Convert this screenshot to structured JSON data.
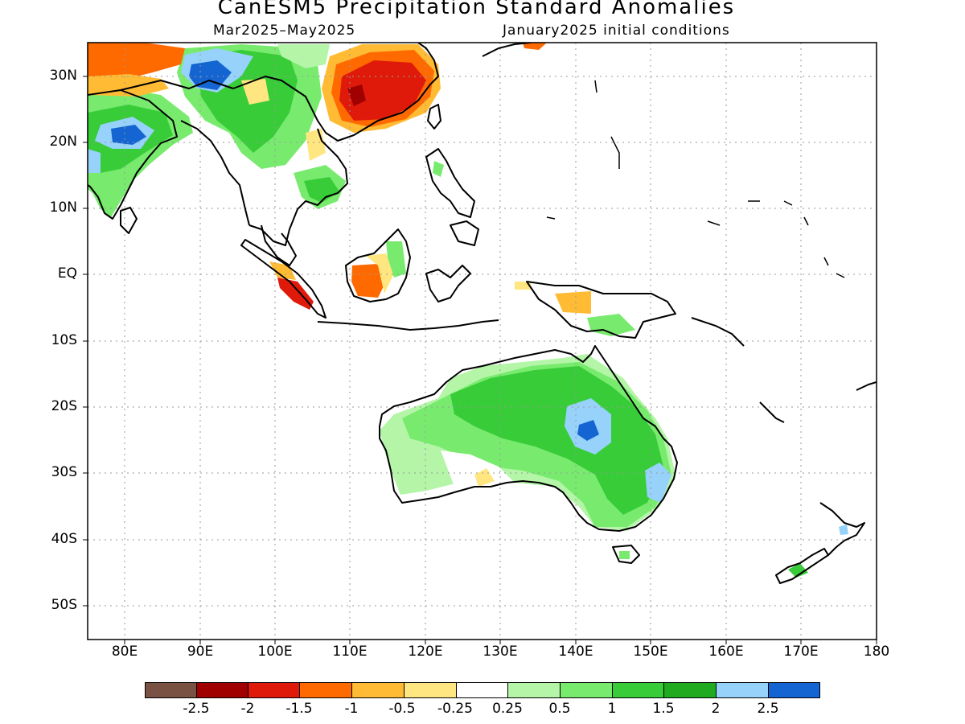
{
  "title": "CanESM5 Precipitation Standard Anomalies",
  "subtitle_left": "Mar2025–May2025",
  "subtitle_right": "January2025 initial conditions",
  "lat_labels": [
    "30N",
    "20N",
    "10N",
    "EQ",
    "10S",
    "20S",
    "30S",
    "40S",
    "50S"
  ],
  "lon_labels": [
    "80E",
    "90E",
    "100E",
    "110E",
    "120E",
    "130E",
    "140E",
    "150E",
    "160E",
    "170E",
    "180"
  ],
  "colorbar": {
    "colors": [
      "#7a5244",
      "#a00000",
      "#e01a0a",
      "#ff6a00",
      "#ffbb33",
      "#ffe680",
      "#ffffff",
      "#b4f5a8",
      "#78eb6e",
      "#38cc38",
      "#1faa1f",
      "#96d2fa",
      "#1464d2"
    ],
    "labels": [
      "-2.5",
      "-2",
      "-1.5",
      "-1",
      "-0.5",
      "-0.25",
      "0.25",
      "0.5",
      "1",
      "1.5",
      "2",
      "2.5"
    ]
  },
  "colors": {
    "grid": "#999999",
    "coast": "#000000"
  }
}
